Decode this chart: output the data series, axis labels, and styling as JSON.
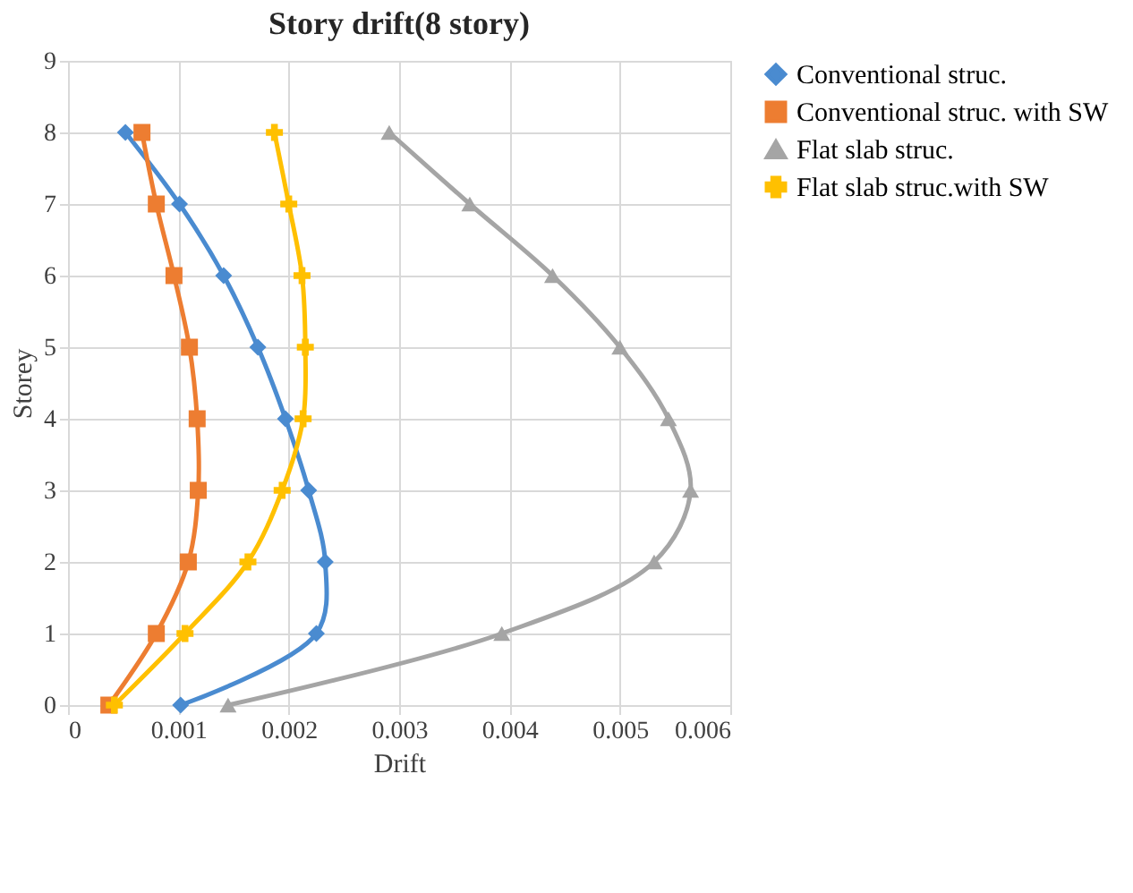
{
  "chart_data": {
    "type": "line",
    "title": "Story drift(8 story)",
    "xlabel": "Drift",
    "ylabel": "Storey",
    "xlim": [
      0,
      0.006
    ],
    "xticks": [
      0,
      0.001,
      0.002,
      0.003,
      0.004,
      0.005,
      0.006
    ],
    "ylim": [
      0,
      9
    ],
    "yticks": [
      0,
      1,
      2,
      3,
      4,
      5,
      6,
      7,
      8,
      9
    ],
    "grid": true,
    "legend": "right",
    "series": [
      {
        "name": "Conventional struc.",
        "color": "#4a8bd0",
        "marker": "diamond",
        "x": [
          0.00102,
          0.00225,
          0.00233,
          0.00218,
          0.00197,
          0.00172,
          0.00141,
          0.00101,
          0.00052
        ],
        "values": [
          0,
          1,
          2,
          3,
          4,
          5,
          6,
          7,
          8
        ]
      },
      {
        "name": "Conventional struc. with SW",
        "color": "#ed7d31",
        "marker": "square",
        "x": [
          0.00037,
          0.0008,
          0.00109,
          0.00118,
          0.00117,
          0.0011,
          0.00096,
          0.0008,
          0.00067
        ],
        "values": [
          0,
          1,
          2,
          3,
          4,
          5,
          6,
          7,
          8
        ]
      },
      {
        "name": "Flat slab struc.",
        "color": "#a5a5a5",
        "marker": "triangle",
        "x": [
          0.00145,
          0.00393,
          0.00531,
          0.00564,
          0.00544,
          0.005,
          0.00439,
          0.00364,
          0.00291
        ],
        "values": [
          0,
          1,
          2,
          3,
          4,
          5,
          6,
          7,
          8
        ]
      },
      {
        "name": "Flat slab struc.with SW",
        "color": "#ffc000",
        "marker": "cross",
        "x": [
          0.00042,
          0.00106,
          0.00163,
          0.00194,
          0.00213,
          0.00215,
          0.00212,
          0.002,
          0.00187
        ],
        "values": [
          0,
          1,
          2,
          3,
          4,
          5,
          6,
          7,
          8
        ]
      }
    ]
  }
}
